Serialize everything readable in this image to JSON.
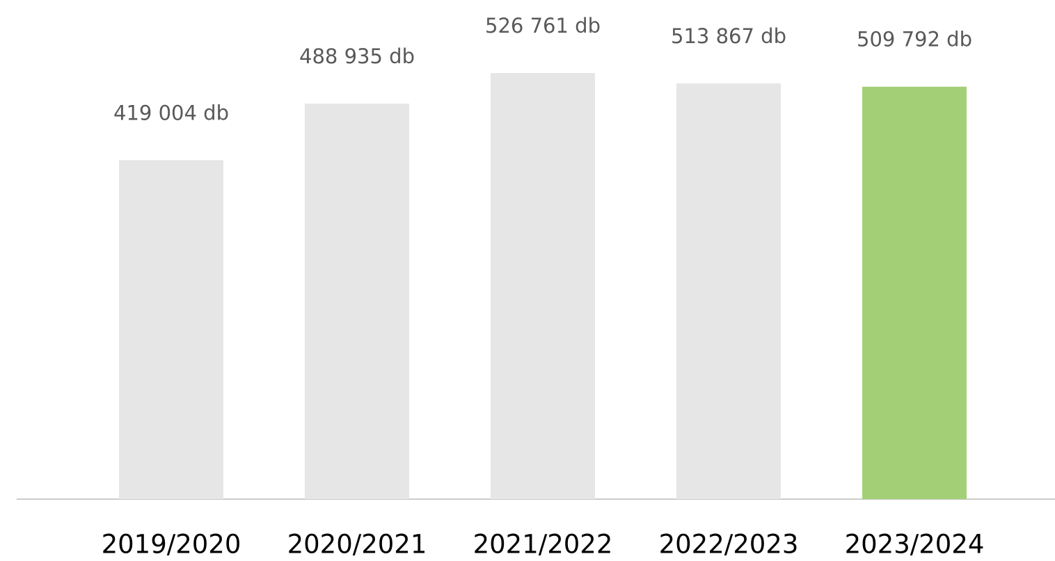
{
  "chart_data": {
    "type": "bar",
    "categories": [
      "2019/2020",
      "2020/2021",
      "2021/2022",
      "2022/2023",
      "2023/2024"
    ],
    "values": [
      419004,
      488935,
      526761,
      513867,
      509792
    ],
    "value_labels": [
      "419 004 db",
      "488 935 db",
      "526 761 db",
      "513 867 db",
      "509 792 db"
    ],
    "colors": [
      "#e6e6e6",
      "#e6e6e6",
      "#e6e6e6",
      "#e6e6e6",
      "#a3d077"
    ]
  }
}
